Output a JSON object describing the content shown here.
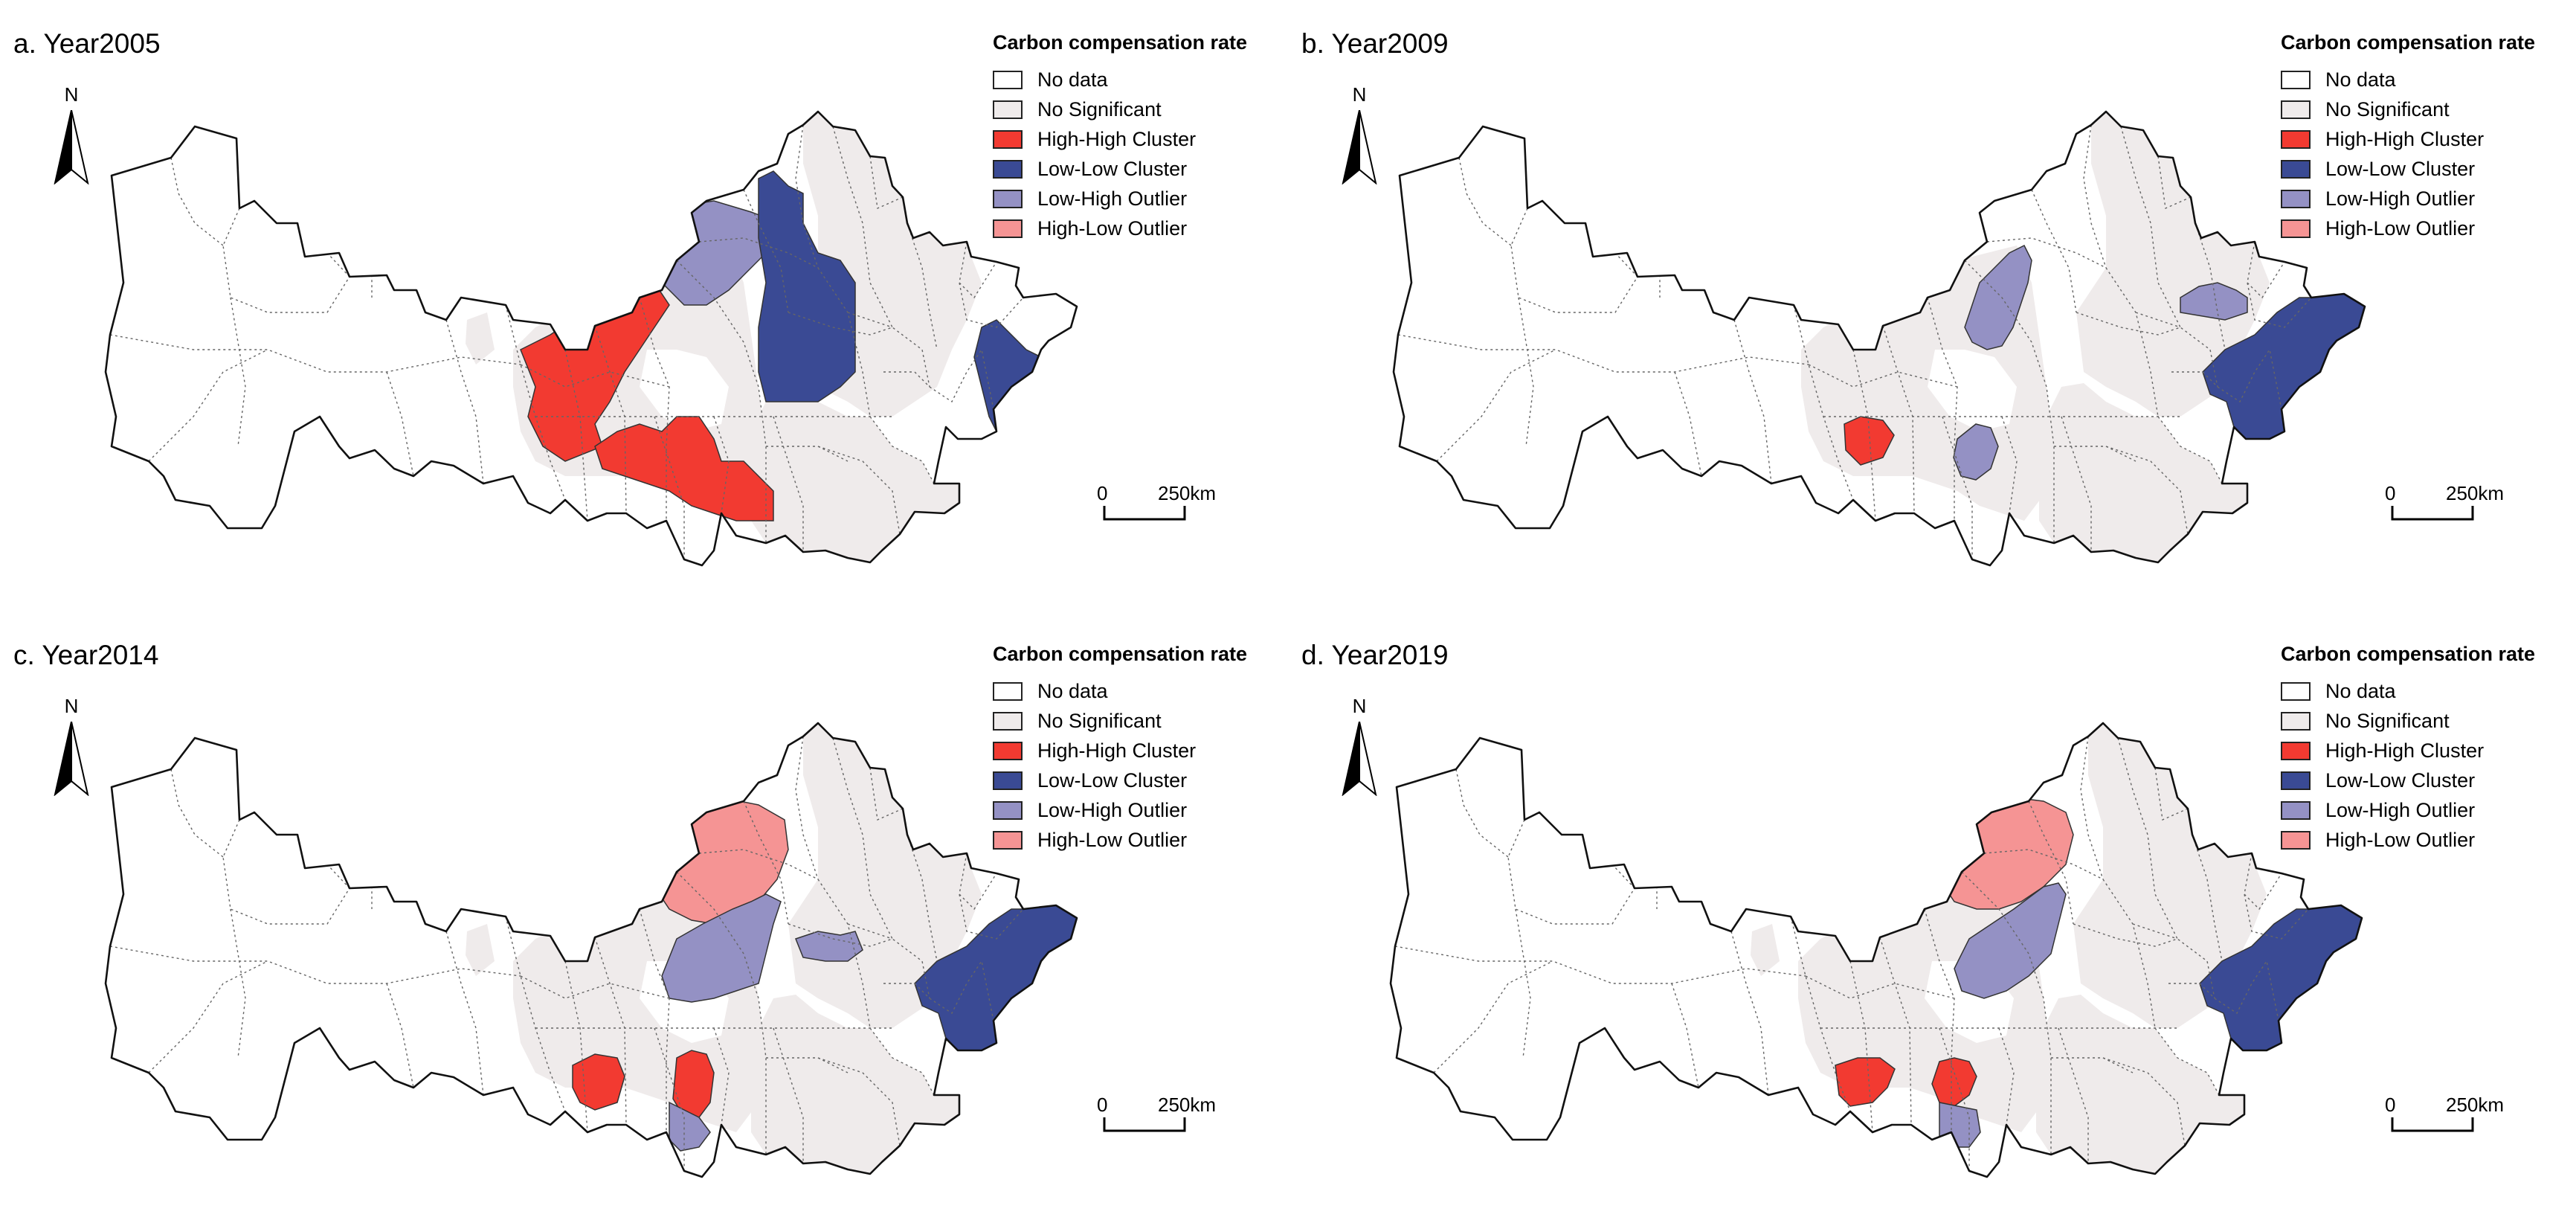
{
  "legend": {
    "title": "Carbon compensation rate",
    "items": [
      {
        "label": "No data",
        "color": "#ffffff"
      },
      {
        "label": "No Significant",
        "color": "#efebeb"
      },
      {
        "label": "High-High Cluster",
        "color": "#f23a31"
      },
      {
        "label": "Low-Low Cluster",
        "color": "#3a4a94"
      },
      {
        "label": "Low-High Outlier",
        "color": "#9491c4"
      },
      {
        "label": "High-Low Outlier",
        "color": "#f59494"
      }
    ]
  },
  "north_label": "N",
  "scale": {
    "zero": "0",
    "distance": "250km"
  },
  "panels": [
    {
      "title": "a. Year2005"
    },
    {
      "title": "b. Year2009"
    },
    {
      "title": "c. Year2014"
    },
    {
      "title": "d. Year2019"
    }
  ]
}
